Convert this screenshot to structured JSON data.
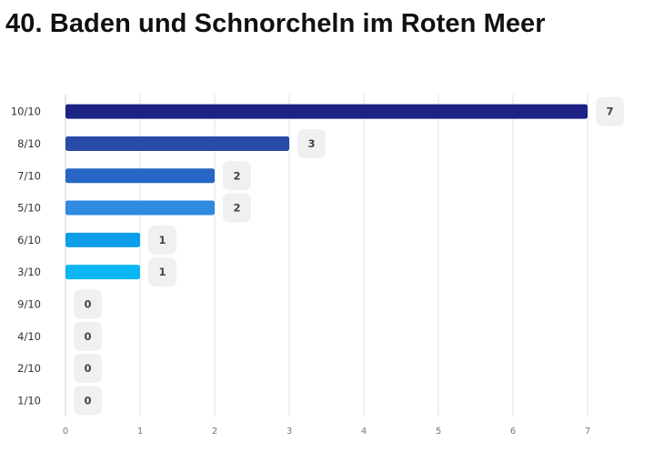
{
  "title": "40. Baden und Schnorcheln im Roten Meer",
  "chart_data": {
    "type": "bar",
    "orientation": "horizontal",
    "title": "40. Baden und Schnorcheln im Roten Meer",
    "xlabel": "",
    "ylabel": "",
    "categories": [
      "10/10",
      "8/10",
      "7/10",
      "5/10",
      "6/10",
      "3/10",
      "9/10",
      "4/10",
      "2/10",
      "1/10"
    ],
    "values": [
      7,
      3,
      2,
      2,
      1,
      1,
      0,
      0,
      0,
      0
    ],
    "xlim": [
      0,
      7
    ],
    "x_ticks": [
      "0",
      "1",
      "2",
      "3",
      "4",
      "5",
      "6",
      "7"
    ],
    "grid": true,
    "legend": "none",
    "bar_colors": [
      "#1d2384",
      "#2a4aa8",
      "#2766c4",
      "#2f8ae0",
      "#0c9fe8",
      "#0bb7f2",
      "#0bb7f2",
      "#0bb7f2",
      "#0bb7f2",
      "#0bb7f2"
    ],
    "grid_color": "#e3e3e3",
    "badge_color": "#f0f0f0"
  }
}
